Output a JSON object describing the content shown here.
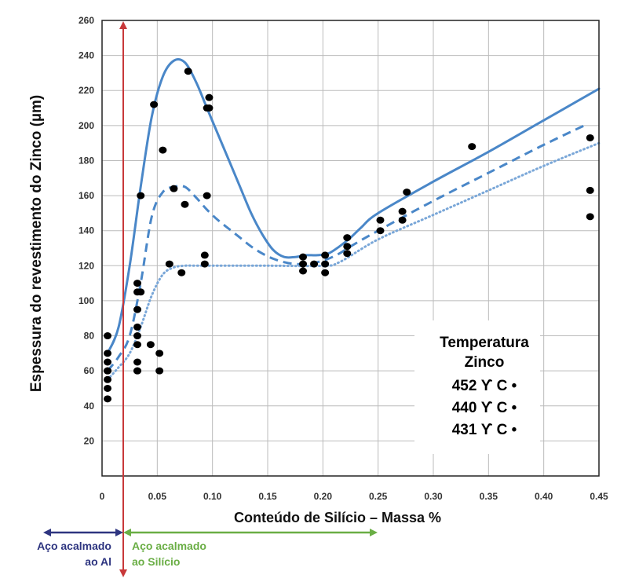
{
  "chart_data": {
    "type": "scatter",
    "title": "",
    "xlabel": "Conteúdo de Silício – Massa %",
    "ylabel": "Espessura do revestimento do Zinco (µm)",
    "xlim": [
      0,
      0.45
    ],
    "ylim": [
      0,
      260
    ],
    "x_ticks": [
      0,
      0.05,
      0.1,
      0.15,
      0.2,
      0.25,
      0.3,
      0.35,
      0.4,
      0.45
    ],
    "x_tick_labels": [
      "0",
      "0.05",
      "0.10",
      "0.15",
      "0.20",
      "0.25",
      "0.30",
      "0.35",
      "0.40",
      "0.45"
    ],
    "y_ticks": [
      20,
      40,
      60,
      80,
      100,
      120,
      140,
      160,
      180,
      200,
      220,
      240,
      260
    ],
    "y_tick_labels": [
      "20",
      "40",
      "60",
      "80",
      "100",
      "120",
      "140",
      "160",
      "180",
      "200",
      "220",
      "240",
      "260"
    ],
    "grid": true,
    "legend": {
      "title_line1": "Temperatura",
      "title_line2": "Zinco",
      "entries": [
        "452 ϒ C •",
        "440 ϒ C •",
        "431 ϒ C •"
      ],
      "placement": "bottom-right"
    },
    "series": [
      {
        "style": "solid",
        "color": "#4a87c8",
        "x": [
          0.005,
          0.015,
          0.025,
          0.035,
          0.045,
          0.055,
          0.065,
          0.075,
          0.085,
          0.095,
          0.105,
          0.115,
          0.125,
          0.135,
          0.145,
          0.155,
          0.165,
          0.175,
          0.185,
          0.195,
          0.205,
          0.215,
          0.225,
          0.235,
          0.25,
          0.3,
          0.35,
          0.4,
          0.45
        ],
        "y": [
          70,
          85,
          120,
          165,
          205,
          228,
          237,
          236,
          225,
          210,
          195,
          180,
          165,
          150,
          138,
          129,
          125,
          125,
          126,
          126,
          127,
          131,
          136,
          142,
          150,
          168,
          185,
          203,
          221
        ]
      },
      {
        "style": "dashed",
        "color": "#4a87c8",
        "x": [
          0.005,
          0.015,
          0.025,
          0.035,
          0.045,
          0.055,
          0.065,
          0.075,
          0.085,
          0.095,
          0.105,
          0.115,
          0.125,
          0.135,
          0.145,
          0.155,
          0.165,
          0.175,
          0.185,
          0.195,
          0.205,
          0.215,
          0.225,
          0.25,
          0.3,
          0.35,
          0.4,
          0.44
        ],
        "y": [
          60,
          68,
          80,
          110,
          148,
          162,
          165,
          165,
          159,
          152,
          146,
          141,
          136,
          131,
          127,
          124,
          122,
          121,
          121,
          122,
          124,
          127,
          131,
          140,
          157,
          173,
          189,
          201
        ]
      },
      {
        "style": "dotted",
        "color": "#7aa7d8",
        "x": [
          0.005,
          0.015,
          0.025,
          0.035,
          0.045,
          0.055,
          0.065,
          0.075,
          0.085,
          0.1,
          0.15,
          0.2,
          0.215,
          0.25,
          0.3,
          0.35,
          0.4,
          0.45
        ],
        "y": [
          55,
          62,
          70,
          85,
          103,
          115,
          119,
          120,
          120,
          120,
          120,
          120,
          122,
          135,
          149,
          163,
          177,
          190
        ]
      }
    ],
    "points": {
      "x": [
        0.005,
        0.005,
        0.005,
        0.005,
        0.005,
        0.005,
        0.005,
        0.005,
        0.032,
        0.032,
        0.032,
        0.032,
        0.032,
        0.032,
        0.032,
        0.032,
        0.032,
        0.035,
        0.035,
        0.044,
        0.047,
        0.052,
        0.052,
        0.055,
        0.061,
        0.065,
        0.072,
        0.075,
        0.078,
        0.093,
        0.093,
        0.095,
        0.095,
        0.097,
        0.097,
        0.182,
        0.182,
        0.182,
        0.192,
        0.202,
        0.202,
        0.202,
        0.222,
        0.222,
        0.222,
        0.252,
        0.252,
        0.272,
        0.272,
        0.276,
        0.335,
        0.442,
        0.442,
        0.442
      ],
      "y": [
        44,
        50,
        55,
        60,
        65,
        70,
        80,
        60,
        60,
        65,
        75,
        80,
        85,
        95,
        105,
        110,
        60,
        105,
        160,
        75,
        212,
        60,
        70,
        186,
        121,
        164,
        116,
        155,
        231,
        121,
        126,
        160,
        210,
        210,
        216,
        117,
        121,
        125,
        121,
        116,
        121,
        126,
        127,
        131,
        136,
        146,
        140,
        151,
        146,
        162,
        188,
        193,
        163,
        148
      ]
    },
    "annotations": [
      {
        "type": "vertical-line",
        "x": 0.01,
        "color": "#c8383a"
      },
      {
        "type": "range-arrow",
        "label_line1": "Aço acalmado",
        "label_line2": "ao Al",
        "color": "#2e3580"
      },
      {
        "type": "range-arrow",
        "label_line1": "Aço acalmado",
        "label_line2": "ao Silício",
        "color": "#6aae45"
      }
    ]
  }
}
